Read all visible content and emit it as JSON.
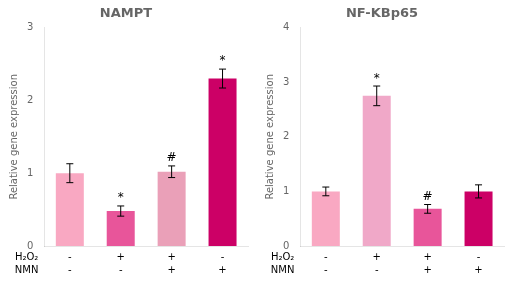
{
  "chart_data": [
    {
      "type": "bar",
      "title": "NAMPT",
      "ylabel": "Relative gene expression",
      "categories": [
        [
          "-",
          "-"
        ],
        [
          "+",
          "-"
        ],
        [
          "+",
          "+"
        ],
        [
          "-",
          "+"
        ]
      ],
      "category_rows": [
        "H₂O₂",
        "NMN"
      ],
      "values": [
        1.0,
        0.48,
        1.02,
        2.3
      ],
      "errors": [
        0.13,
        0.07,
        0.08,
        0.13
      ],
      "colors": [
        "#F9A8C2",
        "#E8559A",
        "#EAA0B8",
        "#CC0066"
      ],
      "annotations": [
        null,
        "*",
        "#",
        "*"
      ],
      "annotation_y": [
        null,
        0.58,
        1.13,
        2.46
      ],
      "ylim": [
        0,
        3.0
      ],
      "yticks": [
        0,
        1,
        2,
        3
      ],
      "grid": false
    },
    {
      "type": "bar",
      "title": "NF-KBp65",
      "ylabel": "Relative gene expression",
      "categories": [
        [
          "-",
          "-"
        ],
        [
          "+",
          "-"
        ],
        [
          "+",
          "+"
        ],
        [
          "-",
          "+"
        ]
      ],
      "category_rows": [
        "H₂O₂",
        "NMN"
      ],
      "values": [
        1.0,
        2.75,
        0.68,
        1.0
      ],
      "errors": [
        0.08,
        0.18,
        0.08,
        0.12
      ],
      "colors": [
        "#F9A8C2",
        "#F0A8C8",
        "#E8559A",
        "#CC0066"
      ],
      "annotations": [
        null,
        "*",
        "#",
        null
      ],
      "annotation_y": [
        null,
        2.96,
        0.79,
        null
      ],
      "ylim": [
        0,
        4.0
      ],
      "yticks": [
        0,
        1,
        2,
        3,
        4
      ],
      "grid": false
    }
  ]
}
